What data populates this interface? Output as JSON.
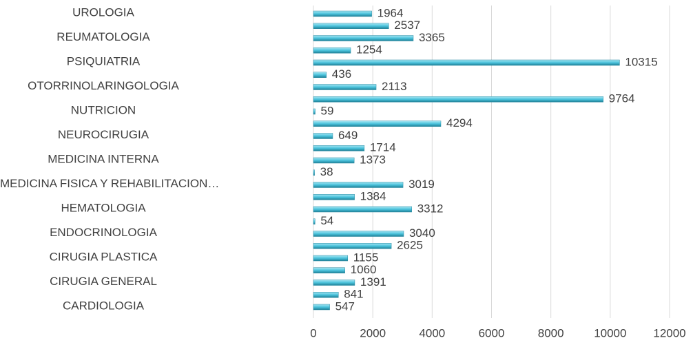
{
  "chart_data": {
    "type": "barh",
    "categories": [
      "CARDIOLOGIA",
      null,
      "CIRUGIA GENERAL",
      null,
      "CIRUGIA PLASTICA",
      null,
      "ENDOCRINOLOGIA",
      null,
      "HEMATOLOGIA",
      null,
      "MEDICINA FISICA Y REHABILITACION…",
      null,
      "MEDICINA INTERNA",
      null,
      "NEUROCIRUGIA",
      null,
      "NUTRICION",
      null,
      "OTORRINOLARINGOLOGIA",
      null,
      "PSIQUIATRIA",
      null,
      "REUMATOLOGIA",
      null,
      "UROLOGIA"
    ],
    "values": [
      547,
      841,
      1391,
      1060,
      1155,
      2625,
      3040,
      54,
      3312,
      1384,
      3019,
      38,
      1373,
      1714,
      649,
      4294,
      59,
      9764,
      2113,
      436,
      10315,
      1254,
      3365,
      2537,
      1964
    ],
    "color": "#4bc3dc",
    "xlim": [
      0,
      12000
    ],
    "xticks": [
      0,
      2000,
      4000,
      6000,
      8000,
      10000,
      12000
    ],
    "grid": true
  }
}
